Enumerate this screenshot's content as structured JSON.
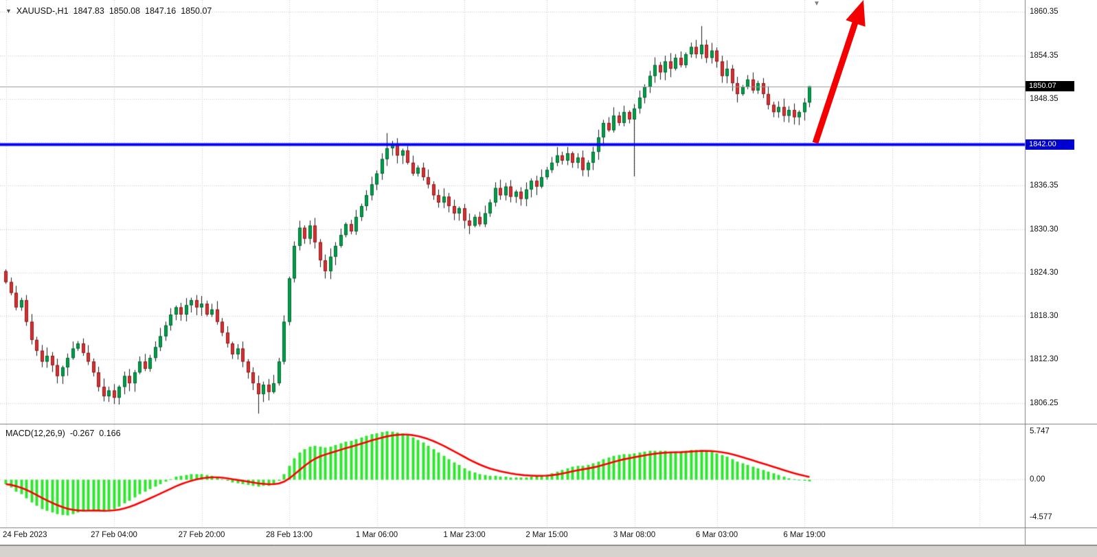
{
  "header": {
    "symbol": "XAUUSD-,H1",
    "open": "1847.83",
    "high": "1850.08",
    "low": "1847.16",
    "close": "1850.07"
  },
  "icons": {
    "down_triangle": "▼"
  },
  "indicator_label": {
    "name": "MACD(12,26,9)",
    "macd": "-0.267",
    "signal": "0.166"
  },
  "price_axis": {
    "ticks": [
      {
        "text": "1860.35",
        "price": 1860.35
      },
      {
        "text": "1854.35",
        "price": 1854.35
      },
      {
        "text": "1848.35",
        "price": 1848.35
      },
      {
        "text": "1836.35",
        "price": 1836.35
      },
      {
        "text": "1830.30",
        "price": 1830.3
      },
      {
        "text": "1824.30",
        "price": 1824.3
      },
      {
        "text": "1818.30",
        "price": 1818.3
      },
      {
        "text": "1812.30",
        "price": 1812.3
      },
      {
        "text": "1806.25",
        "price": 1806.25
      }
    ],
    "current_tag": {
      "text": "1850.07",
      "price": 1850.07
    },
    "hline_tag": {
      "text": "1842.00",
      "price": 1842.0
    }
  },
  "macd_axis": {
    "ticks": [
      {
        "text": "5.747",
        "value": 5.747
      },
      {
        "text": "0.00",
        "value": 0.0
      },
      {
        "text": "-4.577",
        "value": -4.577
      }
    ]
  },
  "time_axis": {
    "labels": [
      {
        "text": "24 Feb 2023",
        "index": 0
      },
      {
        "text": "27 Feb 04:00",
        "index": 21
      },
      {
        "text": "27 Feb 20:00",
        "index": 38
      },
      {
        "text": "28 Feb 13:00",
        "index": 55
      },
      {
        "text": "1 Mar 06:00",
        "index": 72
      },
      {
        "text": "1 Mar 23:00",
        "index": 89
      },
      {
        "text": "2 Mar 15:00",
        "index": 105
      },
      {
        "text": "3 Mar 08:00",
        "index": 122
      },
      {
        "text": "6 Mar 03:00",
        "index": 138
      },
      {
        "text": "6 Mar 19:00",
        "index": 155
      }
    ],
    "extra_grid_indices": [
      172,
      189
    ]
  },
  "colors": {
    "bull": "#00a04a",
    "bear": "#d63031",
    "bull_edge": "#00662e",
    "bear_edge": "#8e1b1b",
    "wick": "#1a1a1a",
    "grid": "#c9c9c9",
    "hline": "#0000ff",
    "current_line": "#9a9a9a",
    "histogram": "#2ee62e",
    "signal": "#ff0000",
    "arrow": "#f40000",
    "separator": "#808080",
    "tag_current_bg": "#000000",
    "tag_hline_bg": "#0000d0"
  },
  "chart_data": [
    {
      "type": "candlestick",
      "symbol": "XAUUSD-",
      "timeframe": "H1",
      "title": "XAUUSD-,H1 1847.83 1850.08 1847.16 1850.07",
      "ylim": [
        1803.4,
        1862.0
      ],
      "grid_prices": [
        1860.35,
        1854.35,
        1848.35,
        1842.35,
        1836.35,
        1830.3,
        1824.3,
        1818.3,
        1812.3,
        1806.25
      ],
      "hline_price": 1842.0,
      "current_price": 1850.07,
      "first_open": 1824.5,
      "closes": [
        1823.0,
        1821.5,
        1819.5,
        1820.5,
        1817.5,
        1815.0,
        1813.5,
        1812.0,
        1812.8,
        1811.5,
        1810.0,
        1811.2,
        1812.5,
        1813.8,
        1814.5,
        1813.2,
        1812.0,
        1810.5,
        1808.5,
        1807.2,
        1808.0,
        1807.0,
        1808.5,
        1810.0,
        1809.0,
        1810.5,
        1812.0,
        1811.0,
        1812.5,
        1814.0,
        1815.5,
        1817.0,
        1818.5,
        1819.5,
        1818.5,
        1819.8,
        1820.5,
        1819.5,
        1820.0,
        1818.5,
        1819.2,
        1817.5,
        1816.0,
        1814.5,
        1813.0,
        1813.8,
        1812.0,
        1810.5,
        1809.0,
        1807.5,
        1808.8,
        1807.8,
        1809.0,
        1812.0,
        1817.5,
        1823.5,
        1828.0,
        1830.5,
        1829.0,
        1830.8,
        1828.5,
        1826.0,
        1824.5,
        1826.5,
        1828.0,
        1829.5,
        1831.0,
        1830.0,
        1832.0,
        1833.5,
        1835.0,
        1836.5,
        1838.0,
        1840.0,
        1841.5,
        1842.0,
        1840.5,
        1841.2,
        1839.5,
        1838.0,
        1838.8,
        1837.5,
        1836.5,
        1835.0,
        1834.0,
        1834.8,
        1833.5,
        1832.5,
        1833.2,
        1831.5,
        1830.8,
        1832.0,
        1831.0,
        1832.5,
        1834.0,
        1836.0,
        1835.0,
        1836.2,
        1834.8,
        1835.5,
        1834.5,
        1835.8,
        1837.0,
        1836.2,
        1837.5,
        1838.5,
        1839.5,
        1840.5,
        1839.8,
        1840.8,
        1839.5,
        1840.2,
        1838.5,
        1839.5,
        1841.0,
        1843.0,
        1845.0,
        1844.0,
        1846.0,
        1845.0,
        1846.5,
        1845.5,
        1847.0,
        1848.5,
        1850.0,
        1851.5,
        1853.0,
        1852.0,
        1853.5,
        1852.5,
        1854.0,
        1853.0,
        1854.5,
        1855.5,
        1854.5,
        1855.8,
        1854.0,
        1855.0,
        1853.5,
        1851.5,
        1852.5,
        1850.5,
        1849.0,
        1850.0,
        1851.0,
        1849.5,
        1850.5,
        1849.0,
        1847.5,
        1846.5,
        1847.2,
        1846.0,
        1846.8,
        1845.8,
        1846.5,
        1847.8,
        1850.07
      ],
      "overrides": {
        "49": {
          "l": 1804.8
        },
        "74": {
          "h": 1843.6
        },
        "122": {
          "l": 1837.6
        },
        "135": {
          "h": 1858.4
        },
        "156": {
          "o": 1847.83,
          "h": 1850.08,
          "l": 1847.16,
          "c": 1850.07
        }
      }
    },
    {
      "type": "bar",
      "name": "MACD(12,26,9) histogram with signal line (signal = EMA9 of histogram)",
      "ylim": [
        6.4,
        -5.8
      ],
      "values": [
        -0.6,
        -1.0,
        -1.5,
        -1.8,
        -2.3,
        -2.8,
        -3.2,
        -3.6,
        -3.8,
        -4.0,
        -4.2,
        -4.3,
        -4.35,
        -4.2,
        -4.0,
        -3.9,
        -3.8,
        -3.7,
        -3.8,
        -3.9,
        -3.7,
        -3.6,
        -3.3,
        -2.9,
        -2.6,
        -2.2,
        -1.8,
        -1.5,
        -1.2,
        -0.9,
        -0.6,
        -0.3,
        0.0,
        0.3,
        0.4,
        0.5,
        0.6,
        0.6,
        0.6,
        0.5,
        0.4,
        0.2,
        0.0,
        -0.2,
        -0.4,
        -0.5,
        -0.6,
        -0.7,
        -0.8,
        -0.9,
        -0.8,
        -0.8,
        -0.6,
        -0.2,
        0.6,
        1.6,
        2.5,
        3.2,
        3.6,
        3.9,
        4.0,
        3.9,
        3.8,
        3.9,
        4.1,
        4.3,
        4.5,
        4.6,
        4.8,
        5.0,
        5.2,
        5.4,
        5.5,
        5.65,
        5.747,
        5.7,
        5.6,
        5.5,
        5.3,
        5.0,
        4.7,
        4.4,
        4.0,
        3.6,
        3.2,
        2.8,
        2.4,
        2.0,
        1.7,
        1.3,
        1.0,
        0.8,
        0.6,
        0.5,
        0.4,
        0.4,
        0.3,
        0.3,
        0.2,
        0.2,
        0.2,
        0.2,
        0.3,
        0.3,
        0.4,
        0.5,
        0.7,
        0.9,
        1.1,
        1.3,
        1.5,
        1.6,
        1.6,
        1.7,
        1.9,
        2.1,
        2.4,
        2.6,
        2.8,
        2.9,
        3.0,
        3.0,
        3.1,
        3.2,
        3.3,
        3.4,
        3.4,
        3.4,
        3.4,
        3.3,
        3.3,
        3.3,
        3.4,
        3.5,
        3.5,
        3.5,
        3.4,
        3.3,
        3.1,
        2.9,
        2.7,
        2.4,
        2.1,
        1.9,
        1.7,
        1.5,
        1.3,
        1.1,
        0.9,
        0.7,
        0.5,
        0.3,
        0.1,
        0.0,
        -0.1,
        -0.2,
        -0.267
      ]
    }
  ]
}
